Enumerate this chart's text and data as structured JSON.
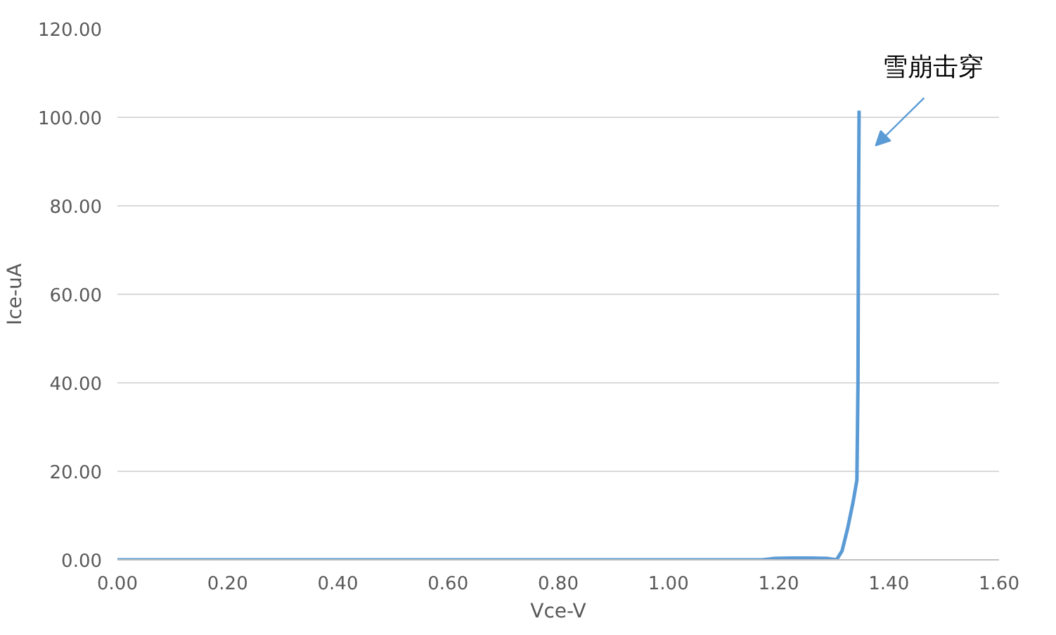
{
  "chart_data": {
    "type": "line",
    "xlabel": "Vce-V",
    "ylabel": "Ice-uA",
    "x": [
      0,
      0.2,
      0.4,
      0.6,
      0.8,
      1.0,
      1.17,
      1.19,
      1.22,
      1.26,
      1.29,
      1.305,
      1.315,
      1.325,
      1.335,
      1.342,
      1.344,
      1.345,
      1.346
    ],
    "series": [
      {
        "color": "#5b9bd5",
        "values": [
          0,
          0,
          0,
          0,
          0,
          0,
          0,
          0.3,
          0.4,
          0.4,
          0.3,
          0,
          2,
          7,
          13,
          18,
          40,
          80,
          101.5
        ]
      }
    ],
    "xlim": [
      0,
      1.6
    ],
    "ylim": [
      0,
      120
    ],
    "xticks": [
      {
        "value": 0,
        "label": "0.00"
      },
      {
        "value": 0.2,
        "label": "0.20"
      },
      {
        "value": 0.4,
        "label": "0.40"
      },
      {
        "value": 0.6,
        "label": "0.60"
      },
      {
        "value": 0.8,
        "label": "0.80"
      },
      {
        "value": 1.0,
        "label": "1.00"
      },
      {
        "value": 1.2,
        "label": "1.20"
      },
      {
        "value": 1.4,
        "label": "1.40"
      },
      {
        "value": 1.6,
        "label": "1.60"
      }
    ],
    "yticks": [
      {
        "value": 0,
        "label": "0.00"
      },
      {
        "value": 20,
        "label": "20.00"
      },
      {
        "value": 40,
        "label": "40.00"
      },
      {
        "value": 60,
        "label": "60.00"
      },
      {
        "value": 80,
        "label": "80.00"
      },
      {
        "value": 100,
        "label": "100.00"
      },
      {
        "value": 120,
        "label": "120.00"
      }
    ],
    "grid": "y",
    "marker": "none",
    "line_style": "solid",
    "annotations": [
      "雪崩击穿"
    ]
  }
}
